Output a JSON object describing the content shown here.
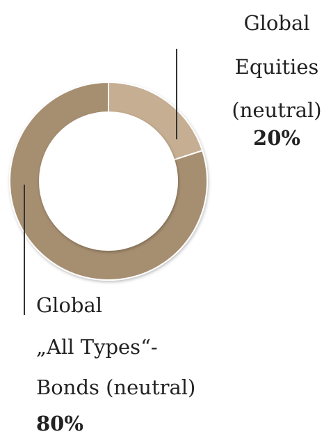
{
  "chart_data": {
    "type": "donut",
    "categories": [
      [
        "Global",
        "Equities",
        "(neutral)"
      ],
      [
        "Global",
        "„All Types“-",
        "Bonds (neutral)"
      ]
    ],
    "values": [
      20,
      80
    ],
    "value_labels": [
      "20%",
      "80%"
    ],
    "colors": [
      "#c5ae92",
      "#a68e70"
    ]
  }
}
